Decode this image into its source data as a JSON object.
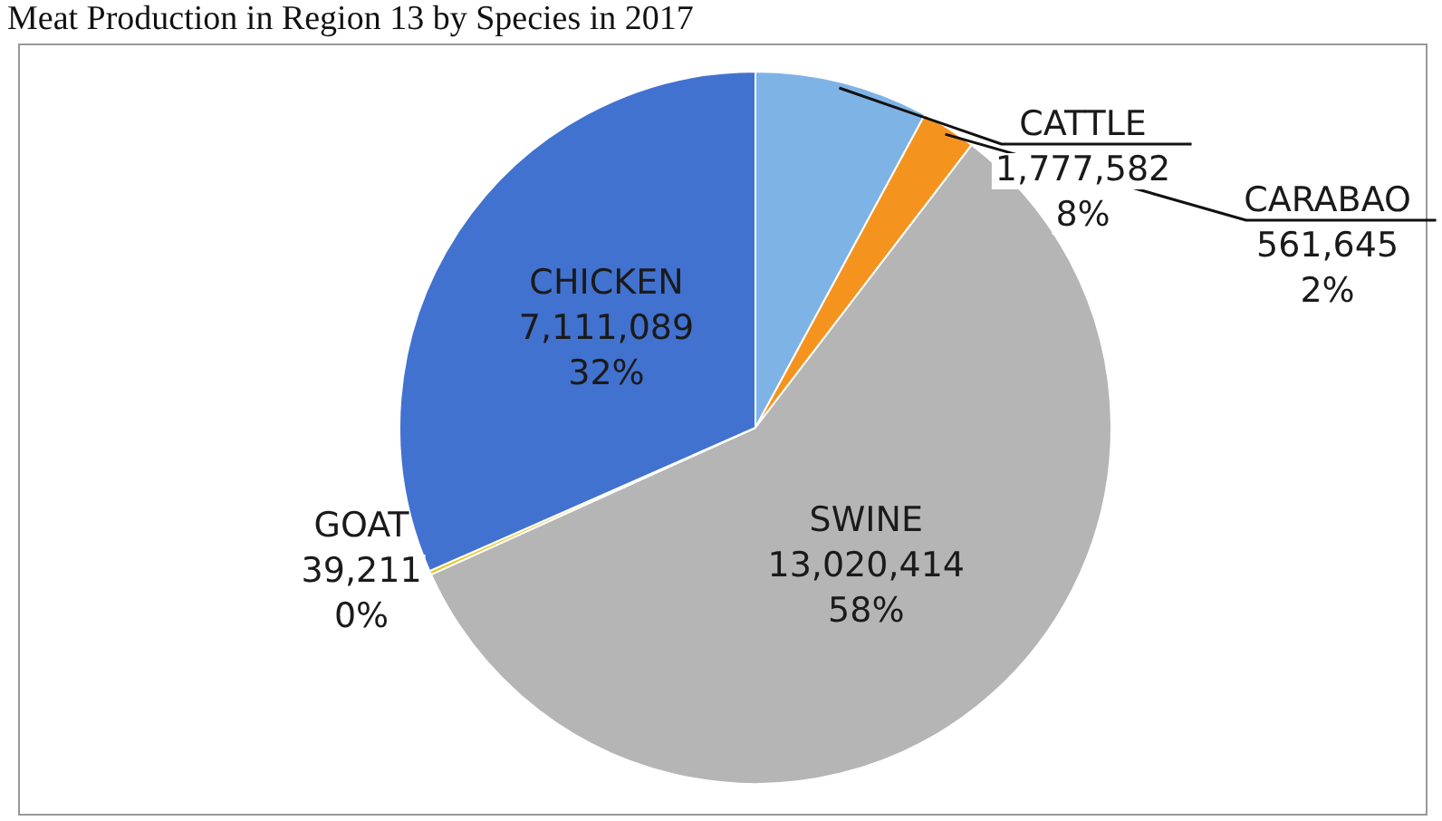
{
  "chart_data": {
    "type": "pie",
    "title": "Meat Production in Region 13 by Species in 2017",
    "categories": [
      "CATTLE",
      "CARABAO",
      "SWINE",
      "GOAT",
      "CHICKEN"
    ],
    "values": [
      1777582,
      561645,
      13020414,
      39211,
      7111089
    ],
    "value_labels": [
      "1,777,582\n8%",
      "561,645\n2%",
      "13,020,414\n58%",
      "39,211\n0%",
      "7,111,089\n32%"
    ],
    "colors": [
      "#7eb3e6",
      "#f5931f",
      "#b5b5b5",
      "#e8c51c",
      "#4272cf"
    ],
    "legend": false
  }
}
